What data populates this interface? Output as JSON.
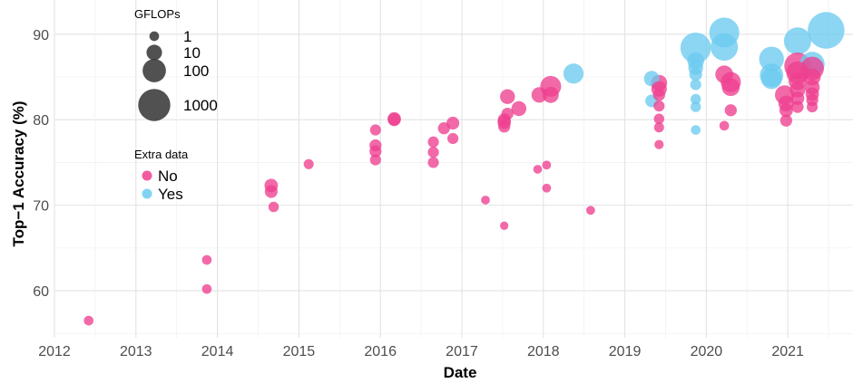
{
  "chart_data": {
    "type": "scatter",
    "xlabel": "Date",
    "ylabel": "Top−1 Accuracy (%)",
    "xlim": [
      2012.0,
      2021.8
    ],
    "ylim": [
      54.5,
      94.0
    ],
    "x_ticks": [
      2012,
      2013,
      2014,
      2015,
      2016,
      2017,
      2018,
      2019,
      2020,
      2021
    ],
    "y_ticks": [
      60,
      70,
      80,
      90
    ],
    "grid": true,
    "size_legend": {
      "title": "GFLOPs",
      "levels": [
        {
          "label": "1",
          "value": 1
        },
        {
          "label": "10",
          "value": 10
        },
        {
          "label": "100",
          "value": 100
        },
        {
          "label": "1000",
          "value": 1000
        }
      ]
    },
    "color_legend": {
      "title": "Extra data",
      "entries": [
        {
          "label": "No",
          "key": "no",
          "color": "#ee3f8f"
        },
        {
          "label": "Yes",
          "key": "yes",
          "color": "#6ccbf0"
        }
      ]
    },
    "points": [
      {
        "date": 2012.42,
        "accuracy": 56.5,
        "gflops": 1,
        "extra_data": "no"
      },
      {
        "date": 2013.87,
        "accuracy": 63.6,
        "gflops": 1,
        "extra_data": "no"
      },
      {
        "date": 2013.87,
        "accuracy": 60.2,
        "gflops": 1,
        "extra_data": "no"
      },
      {
        "date": 2014.66,
        "accuracy": 72.3,
        "gflops": 5,
        "extra_data": "no"
      },
      {
        "date": 2014.66,
        "accuracy": 71.6,
        "gflops": 4,
        "extra_data": "no"
      },
      {
        "date": 2014.69,
        "accuracy": 69.8,
        "gflops": 1.5,
        "extra_data": "no"
      },
      {
        "date": 2015.12,
        "accuracy": 74.8,
        "gflops": 1.2,
        "extra_data": "no"
      },
      {
        "date": 2015.94,
        "accuracy": 78.8,
        "gflops": 2,
        "extra_data": "no"
      },
      {
        "date": 2015.94,
        "accuracy": 77.0,
        "gflops": 3,
        "extra_data": "no"
      },
      {
        "date": 2015.94,
        "accuracy": 76.3,
        "gflops": 3,
        "extra_data": "no"
      },
      {
        "date": 2015.94,
        "accuracy": 75.3,
        "gflops": 2,
        "extra_data": "no"
      },
      {
        "date": 2016.17,
        "accuracy": 80.1,
        "gflops": 5,
        "extra_data": "no"
      },
      {
        "date": 2016.17,
        "accuracy": 80.0,
        "gflops": 4,
        "extra_data": "no"
      },
      {
        "date": 2016.65,
        "accuracy": 77.4,
        "gflops": 2,
        "extra_data": "no"
      },
      {
        "date": 2016.65,
        "accuracy": 76.2,
        "gflops": 2,
        "extra_data": "no"
      },
      {
        "date": 2016.65,
        "accuracy": 75.0,
        "gflops": 2,
        "extra_data": "no"
      },
      {
        "date": 2016.78,
        "accuracy": 79.0,
        "gflops": 3,
        "extra_data": "no"
      },
      {
        "date": 2016.89,
        "accuracy": 79.6,
        "gflops": 4,
        "extra_data": "no"
      },
      {
        "date": 2016.89,
        "accuracy": 77.8,
        "gflops": 2,
        "extra_data": "no"
      },
      {
        "date": 2017.29,
        "accuracy": 70.6,
        "gflops": 0.6,
        "extra_data": "no"
      },
      {
        "date": 2017.52,
        "accuracy": 67.6,
        "gflops": 0.4,
        "extra_data": "no"
      },
      {
        "date": 2017.52,
        "accuracy": 80.0,
        "gflops": 4,
        "extra_data": "no"
      },
      {
        "date": 2017.52,
        "accuracy": 79.7,
        "gflops": 5,
        "extra_data": "no"
      },
      {
        "date": 2017.52,
        "accuracy": 79.2,
        "gflops": 3,
        "extra_data": "no"
      },
      {
        "date": 2017.56,
        "accuracy": 82.7,
        "gflops": 8,
        "extra_data": "no"
      },
      {
        "date": 2017.56,
        "accuracy": 80.7,
        "gflops": 3,
        "extra_data": "no"
      },
      {
        "date": 2017.7,
        "accuracy": 81.3,
        "gflops": 8,
        "extra_data": "no"
      },
      {
        "date": 2017.93,
        "accuracy": 74.2,
        "gflops": 0.6,
        "extra_data": "no"
      },
      {
        "date": 2017.95,
        "accuracy": 82.9,
        "gflops": 10,
        "extra_data": "no"
      },
      {
        "date": 2018.04,
        "accuracy": 74.7,
        "gflops": 0.6,
        "extra_data": "no"
      },
      {
        "date": 2018.04,
        "accuracy": 72.0,
        "gflops": 0.6,
        "extra_data": "no"
      },
      {
        "date": 2018.09,
        "accuracy": 83.9,
        "gflops": 50,
        "extra_data": "no"
      },
      {
        "date": 2018.09,
        "accuracy": 82.9,
        "gflops": 12,
        "extra_data": "no"
      },
      {
        "date": 2018.37,
        "accuracy": 85.4,
        "gflops": 40,
        "extra_data": "yes"
      },
      {
        "date": 2018.58,
        "accuracy": 69.4,
        "gflops": 0.6,
        "extra_data": "no"
      },
      {
        "date": 2019.33,
        "accuracy": 84.8,
        "gflops": 10,
        "extra_data": "yes"
      },
      {
        "date": 2019.33,
        "accuracy": 82.2,
        "gflops": 4,
        "extra_data": "yes"
      },
      {
        "date": 2019.42,
        "accuracy": 84.3,
        "gflops": 12,
        "extra_data": "no"
      },
      {
        "date": 2019.42,
        "accuracy": 83.6,
        "gflops": 10,
        "extra_data": "no"
      },
      {
        "date": 2019.42,
        "accuracy": 82.9,
        "gflops": 3,
        "extra_data": "no"
      },
      {
        "date": 2019.42,
        "accuracy": 81.6,
        "gflops": 2,
        "extra_data": "no"
      },
      {
        "date": 2019.42,
        "accuracy": 80.1,
        "gflops": 1.5,
        "extra_data": "no"
      },
      {
        "date": 2019.42,
        "accuracy": 79.1,
        "gflops": 1.2,
        "extra_data": "no"
      },
      {
        "date": 2019.42,
        "accuracy": 77.1,
        "gflops": 0.8,
        "extra_data": "no"
      },
      {
        "date": 2019.87,
        "accuracy": 88.4,
        "gflops": 700,
        "extra_data": "yes"
      },
      {
        "date": 2019.87,
        "accuracy": 86.9,
        "gflops": 15,
        "extra_data": "yes"
      },
      {
        "date": 2019.87,
        "accuracy": 86.1,
        "gflops": 8,
        "extra_data": "yes"
      },
      {
        "date": 2019.87,
        "accuracy": 85.3,
        "gflops": 4,
        "extra_data": "yes"
      },
      {
        "date": 2019.87,
        "accuracy": 84.1,
        "gflops": 2,
        "extra_data": "yes"
      },
      {
        "date": 2019.87,
        "accuracy": 82.4,
        "gflops": 1.5,
        "extra_data": "yes"
      },
      {
        "date": 2019.87,
        "accuracy": 81.5,
        "gflops": 1.5,
        "extra_data": "yes"
      },
      {
        "date": 2019.87,
        "accuracy": 78.8,
        "gflops": 1,
        "extra_data": "yes"
      },
      {
        "date": 2020.22,
        "accuracy": 90.2,
        "gflops": 600,
        "extra_data": "yes"
      },
      {
        "date": 2020.22,
        "accuracy": 88.5,
        "gflops": 300,
        "extra_data": "yes"
      },
      {
        "date": 2020.22,
        "accuracy": 85.3,
        "gflops": 20,
        "extra_data": "no"
      },
      {
        "date": 2020.22,
        "accuracy": 79.3,
        "gflops": 1,
        "extra_data": "no"
      },
      {
        "date": 2020.3,
        "accuracy": 84.4,
        "gflops": 40,
        "extra_data": "no"
      },
      {
        "date": 2020.3,
        "accuracy": 83.8,
        "gflops": 20,
        "extra_data": "no"
      },
      {
        "date": 2020.3,
        "accuracy": 81.1,
        "gflops": 3,
        "extra_data": "no"
      },
      {
        "date": 2020.8,
        "accuracy": 87.1,
        "gflops": 150,
        "extra_data": "yes"
      },
      {
        "date": 2020.8,
        "accuracy": 85.2,
        "gflops": 100,
        "extra_data": "yes"
      },
      {
        "date": 2020.8,
        "accuracy": 84.8,
        "gflops": 50,
        "extra_data": "yes"
      },
      {
        "date": 2020.96,
        "accuracy": 82.9,
        "gflops": 30,
        "extra_data": "no"
      },
      {
        "date": 2020.98,
        "accuracy": 81.9,
        "gflops": 10,
        "extra_data": "no"
      },
      {
        "date": 2020.98,
        "accuracy": 81.1,
        "gflops": 5,
        "extra_data": "no"
      },
      {
        "date": 2020.98,
        "accuracy": 79.9,
        "gflops": 3,
        "extra_data": "no"
      },
      {
        "date": 2021.12,
        "accuracy": 89.2,
        "gflops": 300,
        "extra_data": "yes"
      },
      {
        "date": 2021.12,
        "accuracy": 86.3,
        "gflops": 250,
        "extra_data": "no"
      },
      {
        "date": 2021.12,
        "accuracy": 85.5,
        "gflops": 80,
        "extra_data": "no"
      },
      {
        "date": 2021.12,
        "accuracy": 84.5,
        "gflops": 20,
        "extra_data": "no"
      },
      {
        "date": 2021.12,
        "accuracy": 83.5,
        "gflops": 10,
        "extra_data": "no"
      },
      {
        "date": 2021.12,
        "accuracy": 82.5,
        "gflops": 5,
        "extra_data": "no"
      },
      {
        "date": 2021.12,
        "accuracy": 81.5,
        "gflops": 3,
        "extra_data": "no"
      },
      {
        "date": 2021.3,
        "accuracy": 86.5,
        "gflops": 150,
        "extra_data": "yes"
      },
      {
        "date": 2021.3,
        "accuracy": 86.0,
        "gflops": 100,
        "extra_data": "no"
      },
      {
        "date": 2021.3,
        "accuracy": 85.0,
        "gflops": 15,
        "extra_data": "no"
      },
      {
        "date": 2021.3,
        "accuracy": 83.8,
        "gflops": 8,
        "extra_data": "no"
      },
      {
        "date": 2021.3,
        "accuracy": 83.0,
        "gflops": 5,
        "extra_data": "no"
      },
      {
        "date": 2021.3,
        "accuracy": 82.3,
        "gflops": 3,
        "extra_data": "no"
      },
      {
        "date": 2021.3,
        "accuracy": 81.5,
        "gflops": 2,
        "extra_data": "no"
      },
      {
        "date": 2021.47,
        "accuracy": 90.45,
        "gflops": 2500,
        "extra_data": "yes"
      }
    ]
  }
}
